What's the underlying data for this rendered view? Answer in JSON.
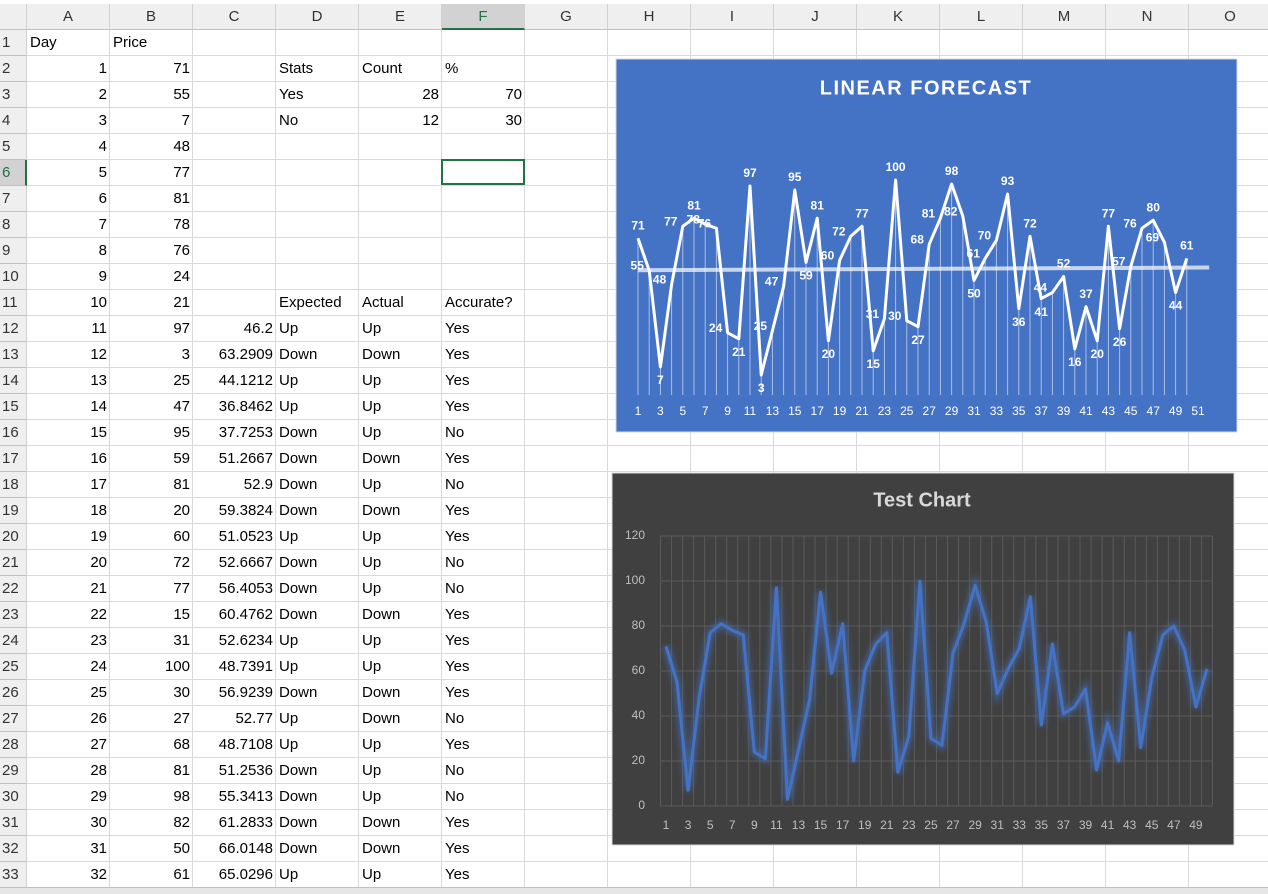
{
  "sheet": {
    "columns": [
      "A",
      "B",
      "C",
      "D",
      "E",
      "F",
      "G",
      "H",
      "I",
      "J",
      "K",
      "L",
      "M",
      "N",
      "O"
    ],
    "active_cell": "F6",
    "rows": [
      {
        "n": 1,
        "cells": {
          "A": "Day",
          "B": "Price"
        }
      },
      {
        "n": 2,
        "cells": {
          "A": 1,
          "B": 71,
          "D": "Stats",
          "E": "Count",
          "F": "%"
        }
      },
      {
        "n": 3,
        "cells": {
          "A": 2,
          "B": 55,
          "D": "Yes",
          "E": 28,
          "F": 70
        }
      },
      {
        "n": 4,
        "cells": {
          "A": 3,
          "B": 7,
          "D": "No",
          "E": 12,
          "F": 30
        }
      },
      {
        "n": 5,
        "cells": {
          "A": 4,
          "B": 48
        }
      },
      {
        "n": 6,
        "cells": {
          "A": 5,
          "B": 77
        }
      },
      {
        "n": 7,
        "cells": {
          "A": 6,
          "B": 81
        }
      },
      {
        "n": 8,
        "cells": {
          "A": 7,
          "B": 78
        }
      },
      {
        "n": 9,
        "cells": {
          "A": 8,
          "B": 76
        }
      },
      {
        "n": 10,
        "cells": {
          "A": 9,
          "B": 24
        }
      },
      {
        "n": 11,
        "cells": {
          "A": 10,
          "B": 21,
          "D": "Expected",
          "E": "Actual",
          "F": "Accurate?"
        }
      },
      {
        "n": 12,
        "cells": {
          "A": 11,
          "B": 97,
          "C": 46.2,
          "D": "Up",
          "E": "Up",
          "F": "Yes"
        }
      },
      {
        "n": 13,
        "cells": {
          "A": 12,
          "B": 3,
          "C": 63.2909,
          "D": "Down",
          "E": "Down",
          "F": "Yes"
        }
      },
      {
        "n": 14,
        "cells": {
          "A": 13,
          "B": 25,
          "C": 44.1212,
          "D": "Up",
          "E": "Up",
          "F": "Yes"
        }
      },
      {
        "n": 15,
        "cells": {
          "A": 14,
          "B": 47,
          "C": 36.8462,
          "D": "Up",
          "E": "Up",
          "F": "Yes"
        }
      },
      {
        "n": 16,
        "cells": {
          "A": 15,
          "B": 95,
          "C": 37.7253,
          "D": "Down",
          "E": "Up",
          "F": "No"
        }
      },
      {
        "n": 17,
        "cells": {
          "A": 16,
          "B": 59,
          "C": 51.2667,
          "D": "Down",
          "E": "Down",
          "F": "Yes"
        }
      },
      {
        "n": 18,
        "cells": {
          "A": 17,
          "B": 81,
          "C": 52.9,
          "D": "Down",
          "E": "Up",
          "F": "No"
        }
      },
      {
        "n": 19,
        "cells": {
          "A": 18,
          "B": 20,
          "C": 59.3824,
          "D": "Down",
          "E": "Down",
          "F": "Yes"
        }
      },
      {
        "n": 20,
        "cells": {
          "A": 19,
          "B": 60,
          "C": 51.0523,
          "D": "Up",
          "E": "Up",
          "F": "Yes"
        }
      },
      {
        "n": 21,
        "cells": {
          "A": 20,
          "B": 72,
          "C": 52.6667,
          "D": "Down",
          "E": "Up",
          "F": "No"
        }
      },
      {
        "n": 22,
        "cells": {
          "A": 21,
          "B": 77,
          "C": 56.4053,
          "D": "Down",
          "E": "Up",
          "F": "No"
        }
      },
      {
        "n": 23,
        "cells": {
          "A": 22,
          "B": 15,
          "C": 60.4762,
          "D": "Down",
          "E": "Down",
          "F": "Yes"
        }
      },
      {
        "n": 24,
        "cells": {
          "A": 23,
          "B": 31,
          "C": 52.6234,
          "D": "Up",
          "E": "Up",
          "F": "Yes"
        }
      },
      {
        "n": 25,
        "cells": {
          "A": 24,
          "B": 100,
          "C": 48.7391,
          "D": "Up",
          "E": "Up",
          "F": "Yes"
        }
      },
      {
        "n": 26,
        "cells": {
          "A": 25,
          "B": 30,
          "C": 56.9239,
          "D": "Down",
          "E": "Down",
          "F": "Yes"
        }
      },
      {
        "n": 27,
        "cells": {
          "A": 26,
          "B": 27,
          "C": 52.77,
          "D": "Up",
          "E": "Down",
          "F": "No"
        }
      },
      {
        "n": 28,
        "cells": {
          "A": 27,
          "B": 68,
          "C": 48.7108,
          "D": "Up",
          "E": "Up",
          "F": "Yes"
        }
      },
      {
        "n": 29,
        "cells": {
          "A": 28,
          "B": 81,
          "C": 51.2536,
          "D": "Down",
          "E": "Up",
          "F": "No"
        }
      },
      {
        "n": 30,
        "cells": {
          "A": 29,
          "B": 98,
          "C": 55.3413,
          "D": "Down",
          "E": "Up",
          "F": "No"
        }
      },
      {
        "n": 31,
        "cells": {
          "A": 30,
          "B": 82,
          "C": 61.2833,
          "D": "Down",
          "E": "Down",
          "F": "Yes"
        }
      },
      {
        "n": 32,
        "cells": {
          "A": 31,
          "B": 50,
          "C": 66.0148,
          "D": "Down",
          "E": "Down",
          "F": "Yes"
        }
      },
      {
        "n": 33,
        "cells": {
          "A": 32,
          "B": 61,
          "C": 65.0296,
          "D": "Up",
          "E": "Up",
          "F": "Yes"
        }
      }
    ]
  },
  "chart_data": [
    {
      "type": "line",
      "title": "LINEAR FORECAST",
      "color": "#ffffff",
      "trendline": "linear",
      "drop_lines": true,
      "data_labels": true,
      "categories": [
        1,
        null,
        3,
        null,
        5,
        null,
        7,
        null,
        9,
        null,
        11,
        null,
        13,
        null,
        15,
        null,
        17,
        null,
        19,
        null,
        21,
        null,
        23,
        null,
        25,
        null,
        27,
        null,
        29,
        null,
        31,
        null,
        33,
        null,
        35,
        null,
        37,
        null,
        39,
        null,
        41,
        null,
        43,
        null,
        45,
        null,
        47,
        null,
        49,
        null,
        51
      ],
      "values": [
        71,
        55,
        7,
        48,
        77,
        81,
        78,
        76,
        24,
        21,
        97,
        3,
        25,
        47,
        95,
        59,
        81,
        20,
        60,
        72,
        77,
        15,
        31,
        100,
        30,
        27,
        68,
        81,
        98,
        82,
        50,
        61,
        70,
        93,
        36,
        72,
        41,
        44,
        52,
        16,
        37,
        20,
        77,
        26,
        57,
        76,
        80,
        69,
        44,
        61,
        null
      ],
      "ylim": [
        0,
        100
      ]
    },
    {
      "type": "line",
      "title": "Test Chart",
      "color": "#4472c4",
      "grid": true,
      "categories": [
        1,
        null,
        3,
        null,
        5,
        null,
        7,
        null,
        9,
        null,
        11,
        null,
        13,
        null,
        15,
        null,
        17,
        null,
        19,
        null,
        21,
        null,
        23,
        null,
        25,
        null,
        27,
        null,
        29,
        null,
        31,
        null,
        33,
        null,
        35,
        null,
        37,
        null,
        39,
        null,
        41,
        null,
        43,
        null,
        45,
        null,
        47,
        null,
        49,
        null
      ],
      "values": [
        71,
        55,
        7,
        48,
        77,
        81,
        78,
        76,
        24,
        21,
        97,
        3,
        25,
        47,
        95,
        59,
        81,
        20,
        60,
        72,
        77,
        15,
        31,
        100,
        30,
        27,
        68,
        81,
        98,
        82,
        50,
        61,
        70,
        93,
        36,
        72,
        41,
        44,
        52,
        16,
        37,
        20,
        77,
        26,
        57,
        76,
        80,
        69,
        44,
        61
      ],
      "ylim": [
        0,
        120
      ],
      "yticks": [
        0,
        20,
        40,
        60,
        80,
        100,
        120
      ]
    }
  ]
}
